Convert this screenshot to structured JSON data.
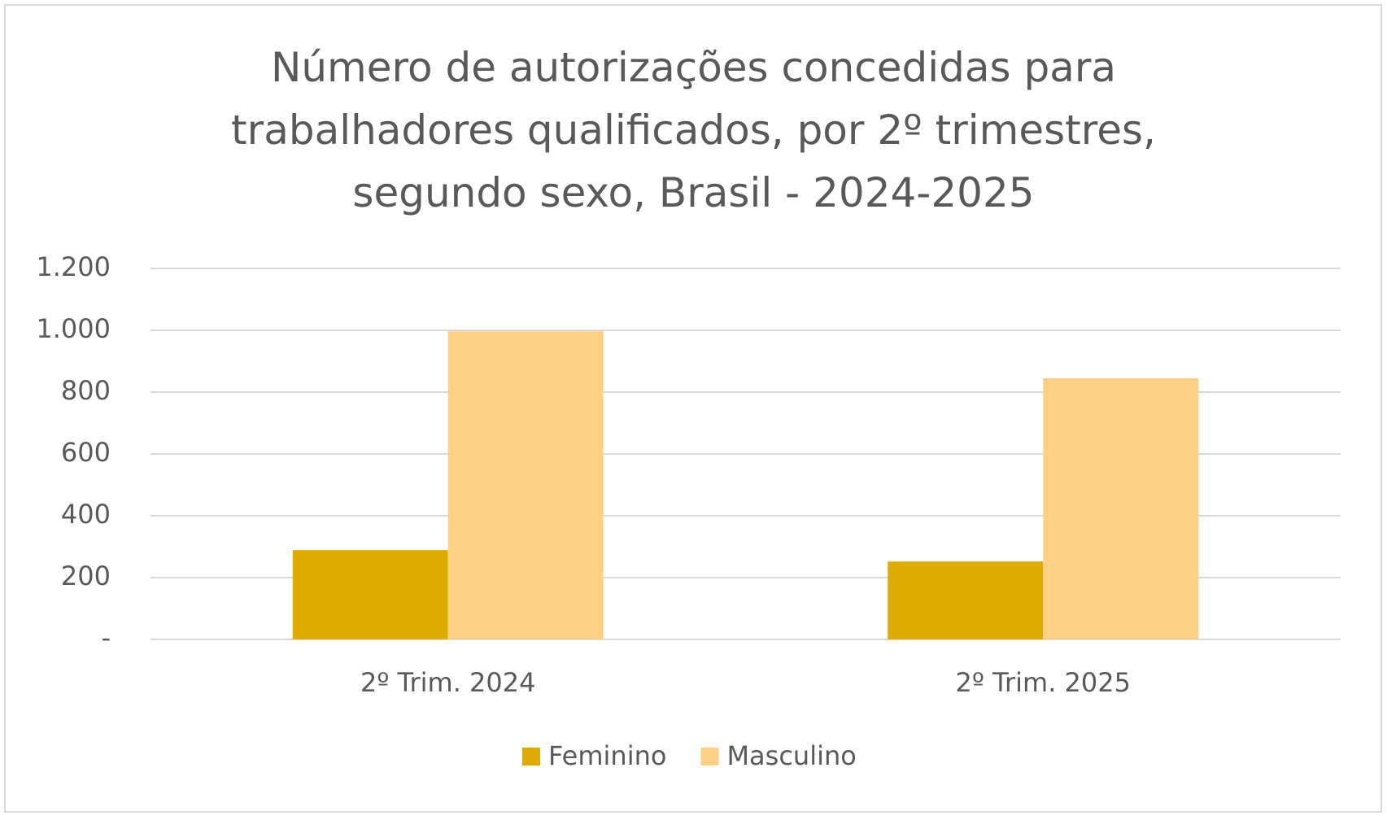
{
  "chart_data": {
    "type": "bar",
    "title": "Número de autorizações concedidas para trabalhadores qualificados, por 2º trimestres, segundo sexo, Brasil - 2024-2025",
    "categories": [
      "2º Trim. 2024",
      "2º Trim. 2025"
    ],
    "series": [
      {
        "name": "Feminino",
        "color": "#e0ab00",
        "values": [
          289,
          252
        ]
      },
      {
        "name": "Masculino",
        "color": "#fdd085",
        "values": [
          997,
          845
        ]
      }
    ],
    "ylim": [
      0,
      1200
    ],
    "yticks": [
      {
        "value": 0,
        "label": "-"
      },
      200,
      400,
      600,
      800,
      {
        "value": 1000,
        "label": "1.000"
      },
      {
        "value": 1200,
        "label": "1.200"
      }
    ],
    "grid": true,
    "legend": "bottom"
  }
}
